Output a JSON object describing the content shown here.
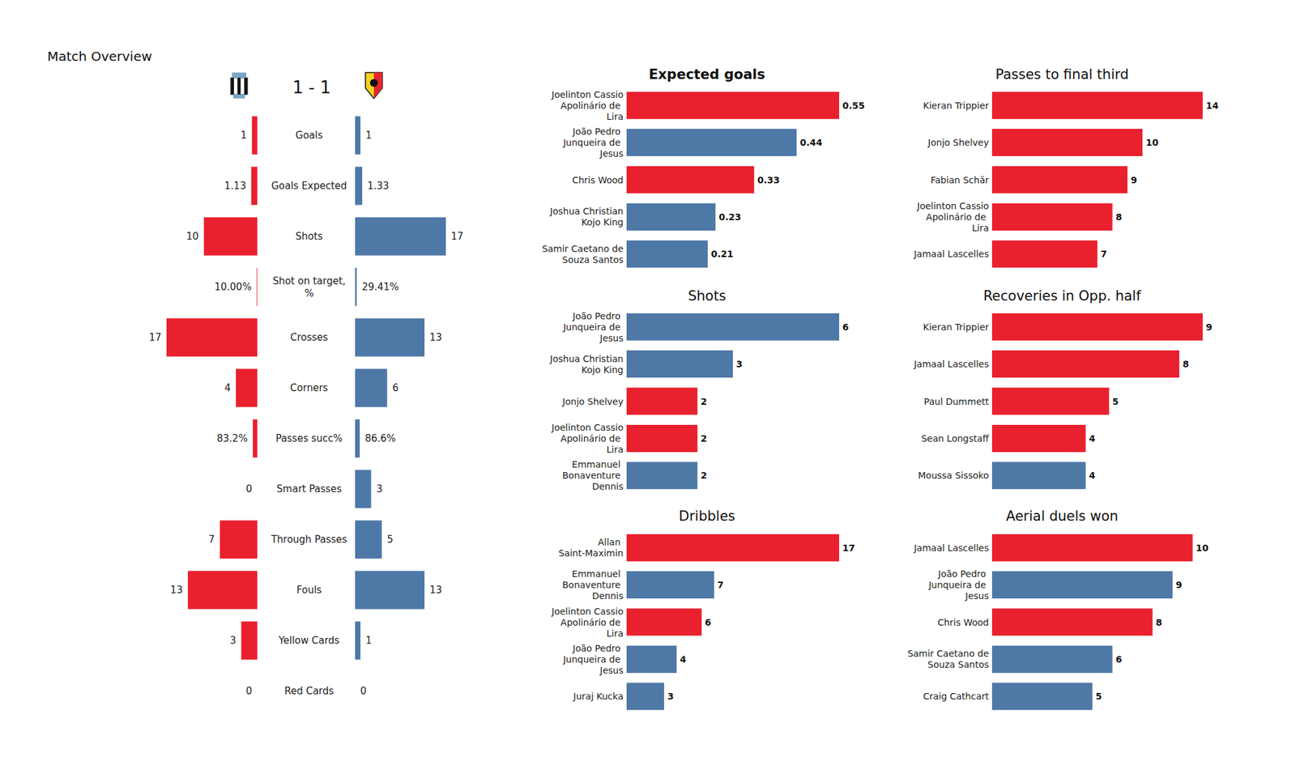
{
  "chart_data": [
    {
      "type": "mirrored_bar",
      "title": "Match Overview",
      "subtitle": "1 - 1",
      "orientation": "horizontal",
      "categories": [
        "Goals",
        "Goals Expected",
        "Shots",
        "Shot on target,%",
        "Crosses",
        "Corners",
        "Passes succ%",
        "Smart Passes",
        "Through Passes",
        "Fouls",
        "Yellow Cards",
        "Red Cards"
      ],
      "series": [
        {
          "color": "#e9202e",
          "values": [
            1,
            1.13,
            10,
            0.1,
            17,
            4,
            0.832,
            0,
            7,
            13,
            3,
            0
          ],
          "value_labels": [
            "1",
            "1.13",
            "10",
            "10.00%",
            "17",
            "4",
            "83.2%",
            "0",
            "7",
            "13",
            "3",
            "0"
          ]
        },
        {
          "color": "#4e78a6",
          "values": [
            1,
            1.33,
            17,
            0.2941,
            13,
            6,
            0.866,
            3,
            5,
            13,
            1,
            0
          ],
          "value_labels": [
            "1",
            "1.33",
            "17",
            "29.41%",
            "13",
            "6",
            "86.6%",
            "3",
            "5",
            "13",
            "1",
            "0"
          ]
        }
      ],
      "xlim": [
        0,
        17
      ],
      "data_labels": true,
      "tick_labels": "y"
    },
    {
      "type": "bar",
      "title": "Expected goals",
      "orientation": "horizontal",
      "categories": [
        "Joelinton Cassio Apolinário de Lira",
        "João Pedro Junqueira de Jesus",
        "Chris Wood",
        "Joshua Christian Kojo King",
        "Samir Caetano de Souza Santos"
      ],
      "values": [
        0.55,
        0.44,
        0.33,
        0.23,
        0.21
      ],
      "colors": [
        "#e9202e",
        "#4e78a6",
        "#e9202e",
        "#4e78a6",
        "#4e78a6"
      ],
      "xlim": [
        0,
        0.55
      ],
      "data_labels": true,
      "tick_labels": "y"
    },
    {
      "type": "bar",
      "title": "Shots",
      "orientation": "horizontal",
      "categories": [
        "João Pedro Junqueira de Jesus",
        "Joshua Christian Kojo King",
        "Jonjo Shelvey",
        "Joelinton Cassio Apolinário de Lira",
        "Emmanuel Bonaventure Dennis"
      ],
      "values": [
        6,
        3,
        2,
        2,
        2
      ],
      "colors": [
        "#4e78a6",
        "#4e78a6",
        "#e9202e",
        "#e9202e",
        "#4e78a6"
      ],
      "xlim": [
        0,
        6
      ],
      "data_labels": true,
      "tick_labels": "y"
    },
    {
      "type": "bar",
      "title": "Dribbles",
      "orientation": "horizontal",
      "categories": [
        "Allan Saint-Maximin",
        "Emmanuel Bonaventure Dennis",
        "Joelinton Cassio Apolinário de Lira",
        "João Pedro Junqueira de Jesus",
        "Juraj Kucka"
      ],
      "values": [
        17,
        7,
        6,
        4,
        3
      ],
      "colors": [
        "#e9202e",
        "#4e78a6",
        "#e9202e",
        "#4e78a6",
        "#4e78a6"
      ],
      "xlim": [
        0,
        17
      ],
      "data_labels": true,
      "tick_labels": "y"
    },
    {
      "type": "bar",
      "title": "Passes to final third",
      "orientation": "horizontal",
      "categories": [
        "Kieran Trippier",
        "Jonjo Shelvey",
        "Fabian Schär",
        "Joelinton Cassio Apolinário de Lira",
        "Jamaal Lascelles"
      ],
      "values": [
        14,
        10,
        9,
        8,
        7
      ],
      "colors": [
        "#e9202e",
        "#e9202e",
        "#e9202e",
        "#e9202e",
        "#e9202e"
      ],
      "xlim": [
        0,
        14
      ],
      "data_labels": true,
      "tick_labels": "y"
    },
    {
      "type": "bar",
      "title": "Recoveries in Opp. half",
      "orientation": "horizontal",
      "categories": [
        "Kieran Trippier",
        "Jamaal Lascelles",
        "Paul Dummett",
        "Sean Longstaff",
        "Moussa Sissoko"
      ],
      "values": [
        9,
        8,
        5,
        4,
        4
      ],
      "colors": [
        "#e9202e",
        "#e9202e",
        "#e9202e",
        "#e9202e",
        "#4e78a6"
      ],
      "xlim": [
        0,
        9
      ],
      "data_labels": true,
      "tick_labels": "y"
    },
    {
      "type": "bar",
      "title": "Aerial duels won",
      "orientation": "horizontal",
      "categories": [
        "Jamaal Lascelles",
        "João Pedro Junqueira de Jesus",
        "Chris Wood",
        "Samir Caetano de Souza Santos",
        "Craig Cathcart"
      ],
      "values": [
        10,
        9,
        8,
        6,
        5
      ],
      "colors": [
        "#e9202e",
        "#4e78a6",
        "#e9202e",
        "#4e78a6",
        "#4e78a6"
      ],
      "xlim": [
        0,
        10.5
      ],
      "data_labels": true,
      "tick_labels": "y"
    }
  ]
}
